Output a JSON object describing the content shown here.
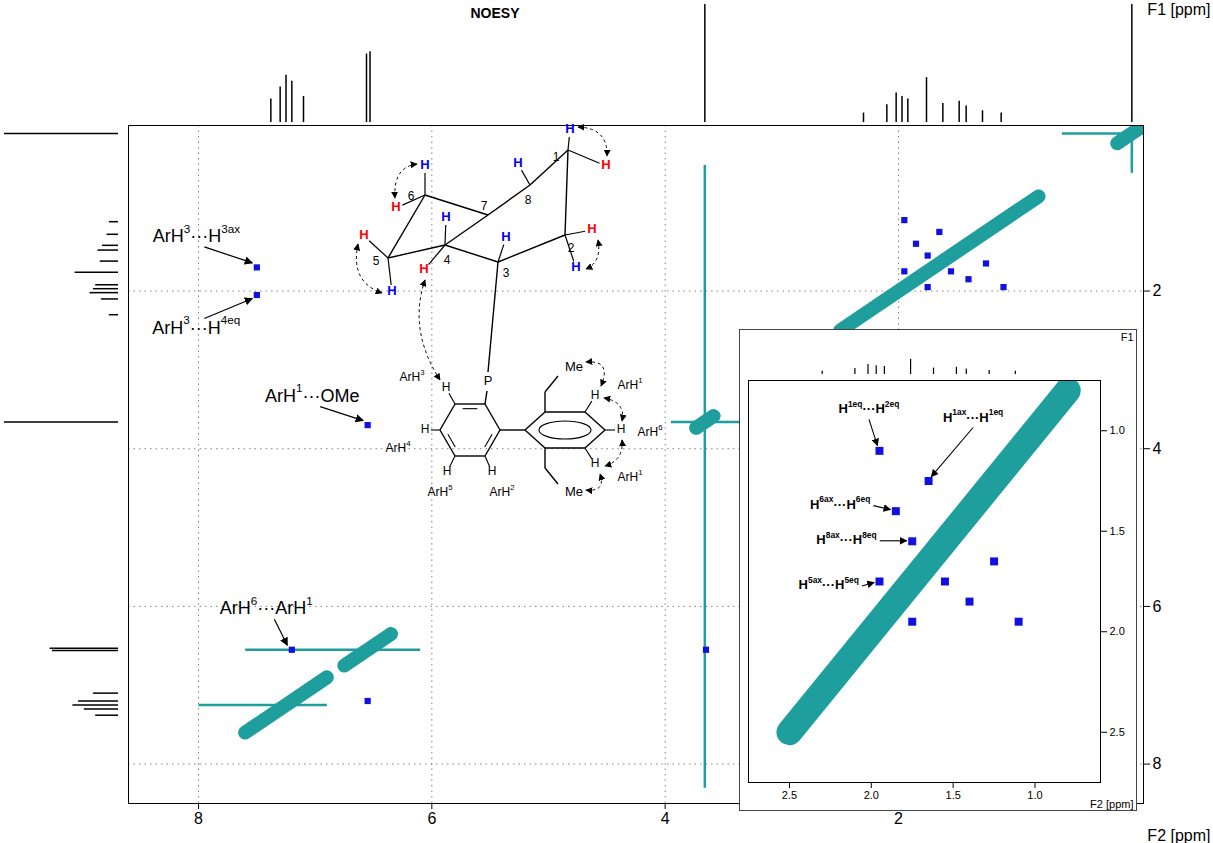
{
  "chart_data": {
    "type": "spectrum2d",
    "title": "NOESY",
    "x_label": "F2 [ppm]",
    "y_label": "F1 [ppm]",
    "xlim": [
      8.6,
      -0.1
    ],
    "ylim": [
      -0.1,
      8.5
    ],
    "xticks": [
      8,
      6,
      4,
      2
    ],
    "yticks": [
      2,
      4,
      6,
      8
    ],
    "grid": true,
    "projection": {
      "tick_labels": false,
      "ylim": [
        0,
        1
      ],
      "ppm": [
        7.38,
        7.3,
        7.25,
        7.2,
        7.1,
        6.56,
        6.53,
        3.66,
        2.3,
        2.1,
        2.02,
        1.97,
        1.92,
        1.76,
        1.62,
        1.48,
        1.42,
        1.28,
        1.12,
        0.0
      ],
      "intensity": [
        0.2,
        0.3,
        0.4,
        0.35,
        0.22,
        0.58,
        0.6,
        1.0,
        0.08,
        0.15,
        0.25,
        0.22,
        0.2,
        0.38,
        0.16,
        0.18,
        0.14,
        0.1,
        0.08,
        1.0
      ]
    },
    "series": [
      {
        "type": "diagonal",
        "color": "#1f9e9e",
        "ppm": [
          7.25,
          6.55,
          3.66,
          1.65,
          0.0
        ],
        "width": [
          0.7,
          0.4,
          0.15,
          1.7,
          0.25
        ],
        "streaks": [
          {
            "f2": [
              7.6,
              6.1
            ],
            "f1": [
              6.55,
              6.55
            ]
          },
          {
            "f2": [
              8.0,
              6.9
            ],
            "f1": [
              7.25,
              7.25
            ]
          },
          {
            "f2": [
              3.95,
              3.3
            ],
            "f1": [
              3.66,
              3.66
            ]
          },
          {
            "f2": [
              3.66,
              3.66
            ],
            "f1": [
              0.4,
              8.3
            ]
          },
          {
            "f2": [
              0.6,
              -0.1
            ],
            "f1": [
              0.0,
              0.0
            ]
          },
          {
            "f2": [
              0.0,
              0.0
            ],
            "f1": [
              -0.1,
              0.5
            ]
          }
        ]
      },
      {
        "type": "cross",
        "color": "#1010e0",
        "f2": [
          7.5,
          7.5,
          6.55,
          3.65,
          7.2,
          6.55,
          1.95,
          1.65,
          1.85,
          1.75,
          1.95,
          1.1,
          1.25,
          1.4,
          1.55,
          1.75
        ],
        "f1": [
          1.7,
          2.05,
          3.7,
          6.55,
          6.55,
          7.2,
          1.1,
          1.25,
          1.4,
          1.55,
          1.75,
          1.95,
          1.65,
          1.85,
          1.75,
          1.95
        ]
      }
    ],
    "annotations": [
      {
        "text": "ArH3···H3ax",
        "peak": 0
      },
      {
        "text": "ArH3···H4eq",
        "peak": 1
      },
      {
        "text": "ArH1···OMe",
        "peak": 2
      },
      {
        "text": "ArH6···ArH1",
        "peak": 4
      }
    ],
    "inset": {
      "x_label": "F2 [ppm]",
      "y_label": "F1",
      "xlim": [
        2.75,
        0.6
      ],
      "ylim": [
        0.75,
        2.75
      ],
      "grid": false,
      "xticks": [
        2.5,
        {
          "value": 2,
          "label": "2.0"
        },
        1.5,
        {
          "value": 1,
          "label": "1.0"
        }
      ],
      "yticks": [
        {
          "value": 1,
          "label": "1.0"
        },
        1.5,
        {
          "value": 2,
          "label": "2.0"
        },
        2.5
      ],
      "annotations": [
        {
          "text": "H1eq···H2eq",
          "peak": 6
        },
        {
          "text": "H1ax···H1eq",
          "peak": 7
        },
        {
          "text": "H6ax···H6eq",
          "peak": 8
        },
        {
          "text": "H8ax···H8eq",
          "peak": 9
        },
        {
          "text": "H5ax···H5eq",
          "peak": 10
        }
      ]
    },
    "structure": {
      "atom_numbers": [
        "1",
        "2",
        "3",
        "4",
        "5",
        "6",
        "7",
        "8"
      ],
      "hydrogen": "H",
      "phosphorus": "P",
      "methyl": "Me",
      "aryl_labels": [
        "ArH1",
        "ArH6",
        "ArH1",
        "ArH3",
        "ArH4",
        "ArH5",
        "ArH2"
      ]
    }
  }
}
